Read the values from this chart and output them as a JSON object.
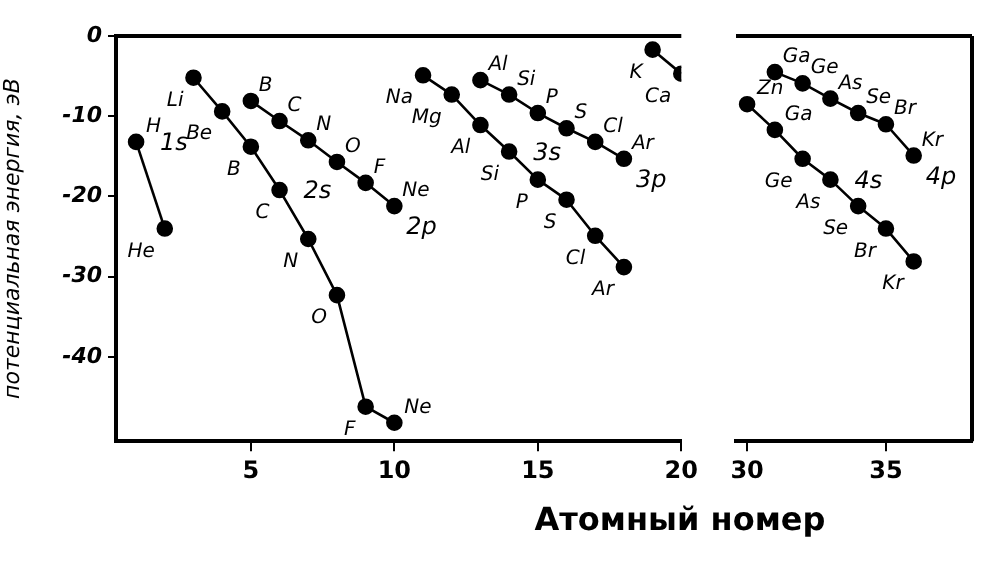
{
  "chart_data": [
    {
      "type": "line",
      "ylabel": "потенциальная энергия, эВ",
      "xlabel": "Атомный номер",
      "marker": "circle",
      "xlim": [
        0.3,
        20
      ],
      "xticks": [
        5,
        10,
        15,
        20
      ],
      "ylim": [
        -50.5,
        0
      ],
      "yticks": [
        0,
        -10,
        -20,
        -30,
        -40
      ],
      "series": [
        {
          "name": "1s",
          "color": "#000000",
          "x": [
            1,
            2
          ],
          "values": [
            -13.2,
            -24
          ]
        },
        {
          "name": "2s",
          "color": "#000000",
          "x": [
            3,
            4,
            5,
            6,
            7,
            8,
            9,
            10
          ],
          "values": [
            -5.2,
            -9.4,
            -13.8,
            -19.2,
            -25.3,
            -32.3,
            -46.2,
            -48.2
          ]
        },
        {
          "name": "2p",
          "color": "#000000",
          "x": [
            5,
            6,
            7,
            8,
            9,
            10
          ],
          "values": [
            -8.1,
            -10.6,
            -13,
            -15.7,
            -18.3,
            -21.2
          ]
        },
        {
          "name": "3s",
          "color": "#000000",
          "x": [
            11,
            12,
            13,
            14,
            15,
            16,
            17,
            18
          ],
          "values": [
            -4.9,
            -7.3,
            -11.1,
            -14.4,
            -17.9,
            -20.4,
            -24.9,
            -28.8
          ]
        },
        {
          "name": "3p",
          "color": "#000000",
          "x": [
            13,
            14,
            15,
            16,
            17,
            18
          ],
          "values": [
            -5.5,
            -7.3,
            -9.6,
            -11.5,
            -13.2,
            -15.3
          ]
        },
        {
          "color": "#000000",
          "x": [
            19,
            20
          ],
          "values": [
            -1.7,
            -4.7
          ]
        }
      ],
      "annotations": [
        {
          "text": "H",
          "x": 1,
          "y": -13.2
        },
        {
          "text": "He",
          "x": 2,
          "y": -24
        },
        {
          "text": "Li",
          "x": 3,
          "y": -5.2
        },
        {
          "text": "Be",
          "x": 4,
          "y": -9.4
        },
        {
          "text": "B",
          "x": 5,
          "y": -13.8
        },
        {
          "text": "C",
          "x": 6,
          "y": -19.2
        },
        {
          "text": "N",
          "x": 7,
          "y": -25.3
        },
        {
          "text": "O",
          "x": 8,
          "y": -32.3
        },
        {
          "text": "F",
          "x": 9,
          "y": -46.2
        },
        {
          "text": "Ne",
          "x": 10,
          "y": -48.2
        },
        {
          "text": "B",
          "x": 5,
          "y": -8.1
        },
        {
          "text": "C",
          "x": 6,
          "y": -10.6
        },
        {
          "text": "N",
          "x": 7,
          "y": -13
        },
        {
          "text": "O",
          "x": 8,
          "y": -15.7
        },
        {
          "text": "F",
          "x": 9,
          "y": -18.3
        },
        {
          "text": "Ne",
          "x": 10,
          "y": -21.2
        },
        {
          "text": "Na",
          "x": 11,
          "y": -4.9
        },
        {
          "text": "Mg",
          "x": 12,
          "y": -7.3
        },
        {
          "text": "Al",
          "x": 13,
          "y": -11.1
        },
        {
          "text": "Si",
          "x": 14,
          "y": -14.4
        },
        {
          "text": "P",
          "x": 15,
          "y": -17.9
        },
        {
          "text": "S",
          "x": 16,
          "y": -20.4
        },
        {
          "text": "Cl",
          "x": 17,
          "y": -24.9
        },
        {
          "text": "Ar",
          "x": 18,
          "y": -28.8
        },
        {
          "text": "Al",
          "x": 13,
          "y": -5.5
        },
        {
          "text": "Si",
          "x": 14,
          "y": -7.3
        },
        {
          "text": "P",
          "x": 15,
          "y": -9.6
        },
        {
          "text": "S",
          "x": 16,
          "y": -11.5
        },
        {
          "text": "Cl",
          "x": 17,
          "y": -13.2
        },
        {
          "text": "Ar",
          "x": 18,
          "y": -15.3
        },
        {
          "text": "K",
          "x": 19,
          "y": -1.7
        },
        {
          "text": "Ca",
          "x": 20,
          "y": -4.7
        }
      ]
    },
    {
      "type": "line",
      "marker": "circle",
      "tick_labels": "x",
      "xlim": [
        29.6,
        38.1
      ],
      "xticks": [
        30,
        35
      ],
      "ylim": [
        -50.5,
        0
      ],
      "yticks": [
        0,
        -10,
        -20,
        -30,
        -40
      ],
      "series": [
        {
          "name": "4s",
          "color": "#000000",
          "x": [
            30,
            31,
            32,
            33,
            34,
            35,
            36
          ],
          "values": [
            -8.5,
            -11.7,
            -15.3,
            -17.9,
            -21.2,
            -24,
            -28.1
          ]
        },
        {
          "name": "4p",
          "color": "#000000",
          "x": [
            31,
            32,
            33,
            34,
            35,
            36
          ],
          "values": [
            -4.5,
            -5.9,
            -7.8,
            -9.6,
            -11,
            -14.9
          ]
        }
      ],
      "annotations": [
        {
          "text": "Zn",
          "x": 30,
          "y": -8.5
        },
        {
          "text": "Ga",
          "x": 31,
          "y": -11.7
        },
        {
          "text": "Ge",
          "x": 32,
          "y": -15.3
        },
        {
          "text": "As",
          "x": 33,
          "y": -17.9
        },
        {
          "text": "Se",
          "x": 34,
          "y": -21.2
        },
        {
          "text": "Br",
          "x": 35,
          "y": -24
        },
        {
          "text": "Kr",
          "x": 36,
          "y": -28.1
        },
        {
          "text": "Ga",
          "x": 31,
          "y": -4.5
        },
        {
          "text": "Ge",
          "x": 32,
          "y": -5.9
        },
        {
          "text": "As",
          "x": 33,
          "y": -7.8
        },
        {
          "text": "Se",
          "x": 34,
          "y": -9.6
        },
        {
          "text": "Br",
          "x": 35,
          "y": -11
        },
        {
          "text": "Kr",
          "x": 36,
          "y": -14.9
        }
      ]
    }
  ]
}
